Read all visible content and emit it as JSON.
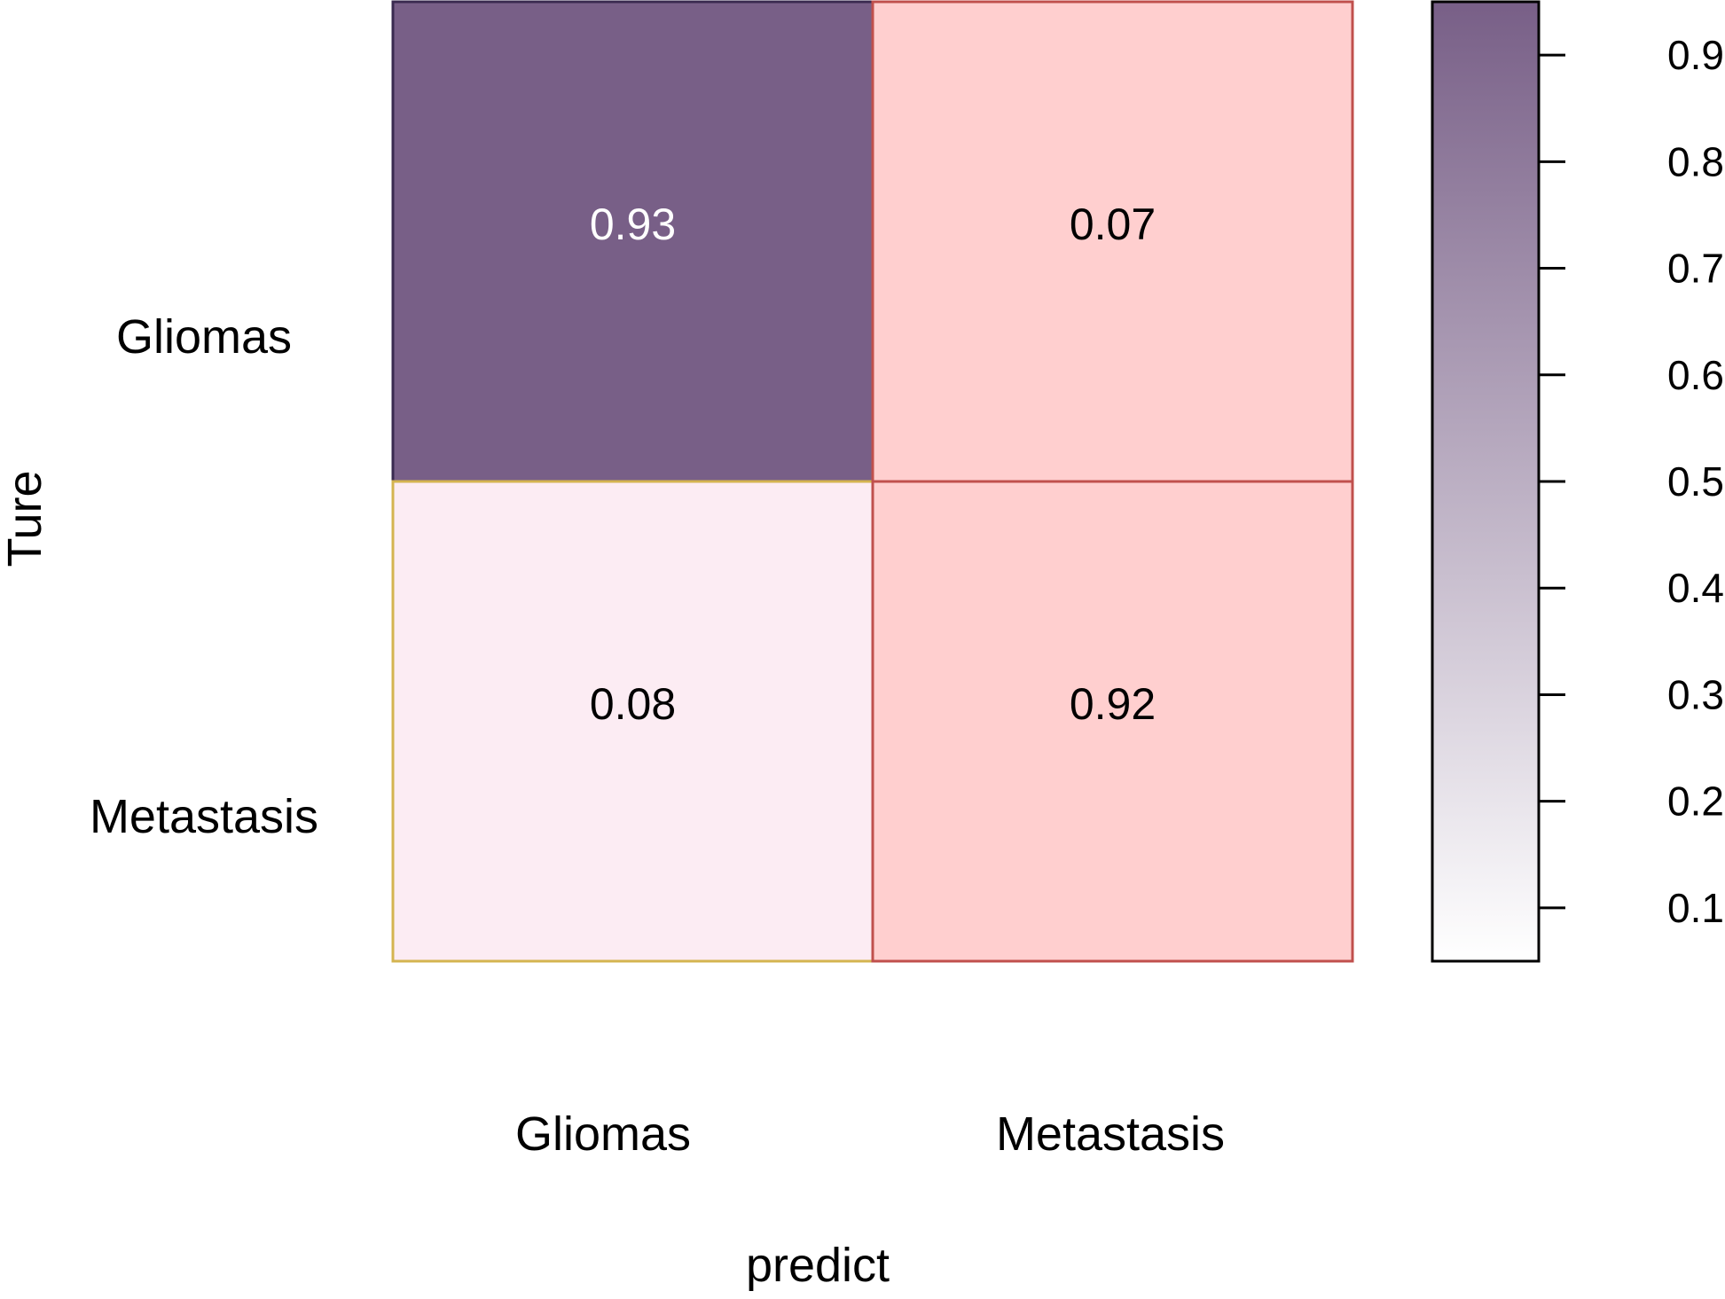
{
  "chart_data": {
    "type": "heatmap",
    "title": "",
    "xlabel": "predict",
    "ylabel": "Ture",
    "x_categories": [
      "Gliomas",
      "Metastasis"
    ],
    "y_categories": [
      "Gliomas",
      "Metastasis"
    ],
    "cells": [
      {
        "row": "Gliomas",
        "col": "Gliomas",
        "value": 0.93,
        "label": "0.93",
        "fill": "#785f87",
        "stroke": "#3a2a50",
        "label_color": "#ffffff"
      },
      {
        "row": "Gliomas",
        "col": "Metastasis",
        "value": 0.07,
        "label": "0.07",
        "fill": "#ffcfcf",
        "stroke": "#c0504d",
        "label_color": "#000000"
      },
      {
        "row": "Metastasis",
        "col": "Gliomas",
        "value": 0.08,
        "label": "0.08",
        "fill": "#fcecf3",
        "stroke": "#d4b450",
        "label_color": "#000000"
      },
      {
        "row": "Metastasis",
        "col": "Metastasis",
        "value": 0.92,
        "label": "0.92",
        "fill": "#ffcfcf",
        "stroke": "#c0504d",
        "label_color": "#000000"
      }
    ],
    "colorbar": {
      "range": [
        0.05,
        0.95
      ],
      "ticks": [
        0.1,
        0.2,
        0.3,
        0.4,
        0.5,
        0.6,
        0.7,
        0.8,
        0.9
      ],
      "tick_labels": [
        "0.1",
        "0.2",
        "0.3",
        "0.4",
        "0.5",
        "0.6",
        "0.7",
        "0.8",
        "0.9"
      ],
      "color_low": "#ffffff",
      "color_high": "#785f87"
    },
    "grid": false,
    "legend": "colorbar-right"
  }
}
